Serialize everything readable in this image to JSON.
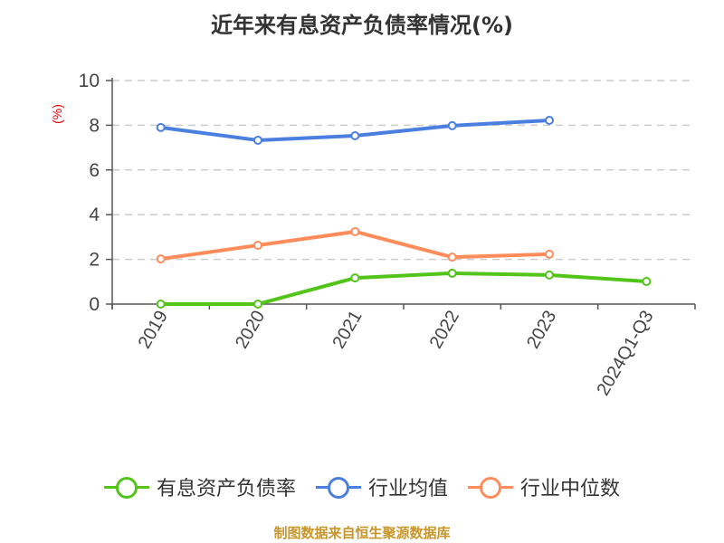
{
  "title": "近年来有息资产负债率情况(%)",
  "y_unit_label": "(%)",
  "footer": "制图数据来自恒生聚源数据库",
  "legend": [
    {
      "label": "有息资产负债率",
      "color": "#52c41a"
    },
    {
      "label": "行业均值",
      "color": "#4a7fe0"
    },
    {
      "label": "行业中位数",
      "color": "#ff8c5a"
    }
  ],
  "chart_data": {
    "type": "line",
    "title": "近年来有息资产负债率情况(%)",
    "xlabel": "",
    "ylabel": "(%)",
    "categories": [
      "2019",
      "2020",
      "2021",
      "2022",
      "2023",
      "2024Q1-Q3"
    ],
    "yticks": [
      0,
      2,
      4,
      6,
      8,
      10
    ],
    "ylim": [
      0,
      10
    ],
    "grid": true,
    "legend_position": "bottom",
    "series": [
      {
        "name": "有息资产负债率",
        "color": "#52c41a",
        "values": [
          0.0,
          0.0,
          1.17,
          1.38,
          1.3,
          1.01
        ]
      },
      {
        "name": "行业均值",
        "color": "#4a7fe0",
        "values": [
          7.9,
          7.33,
          7.53,
          7.98,
          8.22,
          null
        ]
      },
      {
        "name": "行业中位数",
        "color": "#ff8c5a",
        "values": [
          2.02,
          2.63,
          3.24,
          2.1,
          2.23,
          null
        ]
      }
    ]
  }
}
